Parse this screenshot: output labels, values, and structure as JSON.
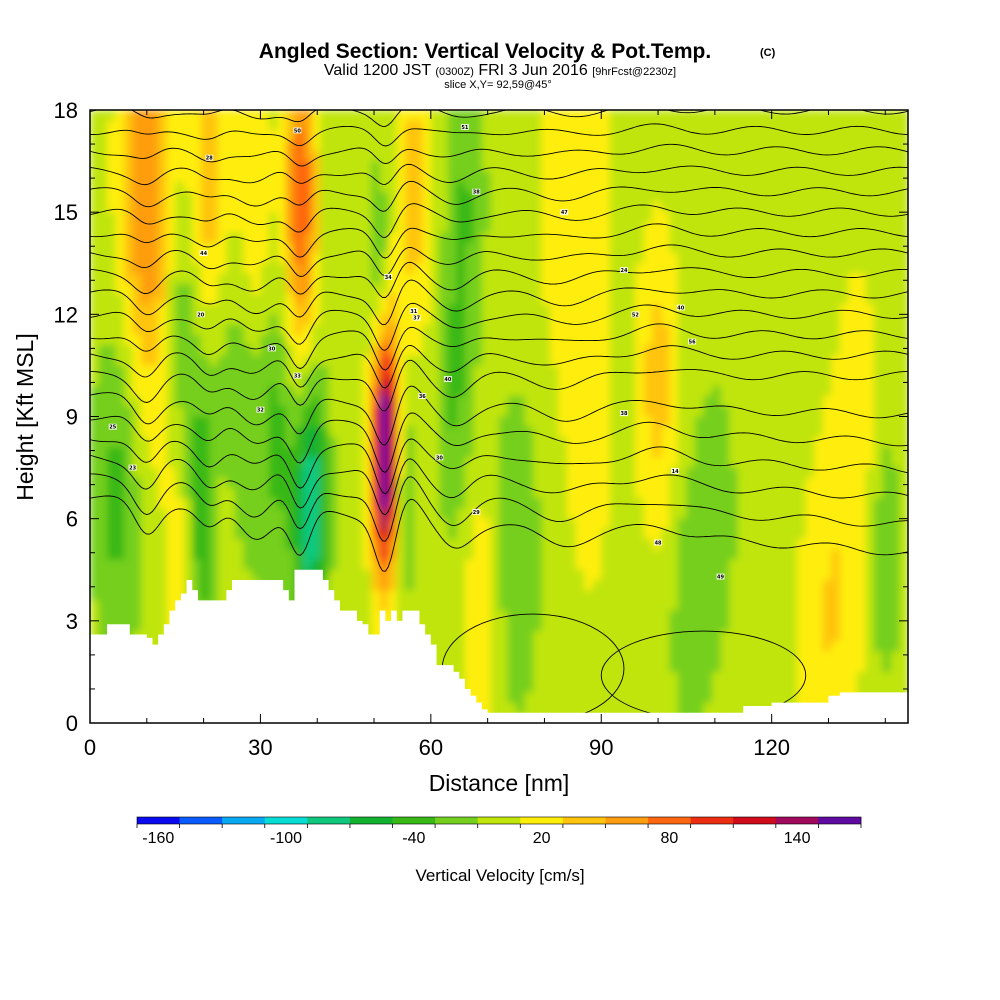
{
  "chart_data": {
    "type": "heatmap",
    "title": "Angled Section: Vertical Velocity & Pot.Temp.",
    "title_suffix": "(C)",
    "subtitle_parts": [
      "Valid 1200 JST ",
      "(0300Z)",
      " FRI 3 Jun 2016 ",
      "[9hrFcst@2230z]"
    ],
    "slice_label": "slice X,Y= 92,59@45°",
    "xlabel": "Distance [nm]",
    "ylabel": "Height [Kft MSL]",
    "xlim": [
      0,
      144
    ],
    "ylim": [
      0,
      18
    ],
    "x_ticks": [
      0,
      30,
      60,
      90,
      120
    ],
    "y_ticks": [
      0,
      3,
      6,
      9,
      12,
      15,
      18
    ],
    "colorbar": {
      "label": "Vertical Velocity [cm/s]",
      "tick_labels": [
        -160,
        -100,
        -40,
        20,
        80,
        140
      ],
      "levels": [
        -160,
        -140,
        -120,
        -100,
        -80,
        -60,
        -40,
        -20,
        0,
        20,
        40,
        60,
        80,
        100,
        120,
        140,
        160
      ],
      "colors": [
        "#0a0aee",
        "#0a5bff",
        "#08aaf2",
        "#08ddd5",
        "#0fc87e",
        "#13b331",
        "#38b816",
        "#74cf1e",
        "#bfe50a",
        "#ffee0a",
        "#ffc40e",
        "#ff9d11",
        "#ff6611",
        "#ee2e12",
        "#d10a1c",
        "#a10a5c",
        "#5f0aa0"
      ]
    },
    "background_velocity_cm_s": 10,
    "velocity_features": [
      {
        "x": 10,
        "y": 16.5,
        "w": 10,
        "value": 50
      },
      {
        "x": 10,
        "y": 12.5,
        "w": 12,
        "value": 30
      },
      {
        "x": 21,
        "y": 16.0,
        "w": 8,
        "value": 45
      },
      {
        "x": 37,
        "y": 16.0,
        "w": 6,
        "value": 80
      },
      {
        "x": 37,
        "y": 11.5,
        "w": 7,
        "value": 45
      },
      {
        "x": 29,
        "y": 14.0,
        "w": 8,
        "value": 40
      },
      {
        "x": 16,
        "y": 12.0,
        "w": 7,
        "value": -30
      },
      {
        "x": 27,
        "y": 10.5,
        "w": 10,
        "value": -30
      },
      {
        "x": 34,
        "y": 9.0,
        "w": 10,
        "value": -40
      },
      {
        "x": 39,
        "y": 6.5,
        "w": 6,
        "value": -90
      },
      {
        "x": 5,
        "y": 7.0,
        "w": 10,
        "value": -40
      },
      {
        "x": 20,
        "y": 6.0,
        "w": 8,
        "value": -50
      },
      {
        "x": 16,
        "y": 5.0,
        "w": 6,
        "value": 30
      },
      {
        "x": 23,
        "y": 5.0,
        "w": 5,
        "value": 30
      },
      {
        "x": 52,
        "y": 7.5,
        "w": 5,
        "value": 150
      },
      {
        "x": 52,
        "y": 9.5,
        "w": 6,
        "value": 60
      },
      {
        "x": 55,
        "y": 7.0,
        "w": 5,
        "value": -40
      },
      {
        "x": 51,
        "y": 13.0,
        "w": 5,
        "value": -40
      },
      {
        "x": 57,
        "y": 15.5,
        "w": 8,
        "value": 40
      },
      {
        "x": 66,
        "y": 15.5,
        "w": 8,
        "value": -30
      },
      {
        "x": 64,
        "y": 9.5,
        "w": 7,
        "value": -30
      },
      {
        "x": 75,
        "y": 5.0,
        "w": 10,
        "value": -25
      },
      {
        "x": 69,
        "y": 3.0,
        "w": 7,
        "value": 30
      },
      {
        "x": 85,
        "y": 16.0,
        "w": 14,
        "value": 25
      },
      {
        "x": 100,
        "y": 10.0,
        "w": 8,
        "value": 40
      },
      {
        "x": 110,
        "y": 6.0,
        "w": 12,
        "value": -15
      },
      {
        "x": 105,
        "y": 3.0,
        "w": 8,
        "value": -15
      },
      {
        "x": 125,
        "y": 14.0,
        "w": 14,
        "value": -10
      },
      {
        "x": 135,
        "y": 9.0,
        "w": 10,
        "value": 20
      },
      {
        "x": 140,
        "y": 5.0,
        "w": 6,
        "value": -30
      },
      {
        "x": 130,
        "y": 3.0,
        "w": 12,
        "value": 30
      },
      {
        "x": 88,
        "y": 7.5,
        "w": 10,
        "value": 15
      }
    ],
    "terrain_kft": {
      "x": [
        0,
        3,
        5,
        7,
        9,
        10,
        11,
        12,
        13,
        14,
        15,
        16,
        17,
        18,
        19,
        20,
        23,
        24,
        25,
        26,
        33,
        34,
        35,
        36,
        40,
        41,
        42,
        43,
        44,
        45,
        47,
        48,
        49,
        50,
        51,
        52,
        53,
        54,
        55,
        57,
        58,
        59,
        60,
        61,
        62,
        63,
        64,
        65,
        66,
        67,
        68,
        69,
        70,
        72,
        100,
        114,
        115,
        118,
        120,
        125,
        130,
        132,
        138,
        144
      ],
      "y": [
        2.6,
        2.9,
        2.9,
        2.6,
        2.6,
        2.5,
        2.3,
        2.6,
        2.9,
        3.3,
        3.6,
        3.8,
        4.2,
        3.9,
        3.6,
        3.6,
        3.6,
        3.9,
        4.2,
        4.2,
        4.2,
        3.9,
        3.6,
        4.5,
        4.5,
        4.2,
        3.9,
        3.6,
        3.3,
        3.3,
        3.0,
        2.9,
        2.6,
        2.6,
        3.3,
        3.0,
        3.3,
        3.0,
        3.3,
        3.3,
        2.9,
        2.6,
        2.3,
        1.7,
        1.7,
        1.7,
        1.5,
        1.3,
        1.0,
        0.8,
        0.6,
        0.4,
        0.3,
        0.3,
        0.3,
        0.3,
        0.5,
        0.5,
        0.6,
        0.6,
        0.8,
        0.9,
        0.9,
        1.3
      ]
    },
    "isentropes": {
      "count": 24,
      "base_kft": 6.6,
      "spacing_kft": 0.6,
      "label_points": [
        {
          "x": 4,
          "y": 8.7,
          "text": "25"
        },
        {
          "x": 7.5,
          "y": 7.5,
          "text": "23"
        },
        {
          "x": 21,
          "y": 16.6,
          "text": "28"
        },
        {
          "x": 20,
          "y": 13.8,
          "text": "44"
        },
        {
          "x": 19.5,
          "y": 12.0,
          "text": "20"
        },
        {
          "x": 32,
          "y": 11.0,
          "text": "30"
        },
        {
          "x": 30,
          "y": 9.2,
          "text": "32"
        },
        {
          "x": 36.5,
          "y": 10.2,
          "text": "33"
        },
        {
          "x": 36.5,
          "y": 17.4,
          "text": "50"
        },
        {
          "x": 52.5,
          "y": 13.1,
          "text": "34"
        },
        {
          "x": 57,
          "y": 12.1,
          "text": "31"
        },
        {
          "x": 57.5,
          "y": 11.9,
          "text": "37"
        },
        {
          "x": 58.5,
          "y": 9.6,
          "text": "36"
        },
        {
          "x": 63,
          "y": 10.1,
          "text": "40"
        },
        {
          "x": 61.5,
          "y": 7.8,
          "text": "30"
        },
        {
          "x": 68,
          "y": 6.2,
          "text": "29"
        },
        {
          "x": 66,
          "y": 17.5,
          "text": "51"
        },
        {
          "x": 68,
          "y": 15.6,
          "text": "38"
        },
        {
          "x": 83.5,
          "y": 15.0,
          "text": "47"
        },
        {
          "x": 94,
          "y": 13.3,
          "text": "24"
        },
        {
          "x": 96,
          "y": 12.0,
          "text": "52"
        },
        {
          "x": 104,
          "y": 12.2,
          "text": "40"
        },
        {
          "x": 106,
          "y": 11.2,
          "text": "56"
        },
        {
          "x": 94,
          "y": 9.1,
          "text": "38"
        },
        {
          "x": 100,
          "y": 5.3,
          "text": "48"
        },
        {
          "x": 111,
          "y": 4.3,
          "text": "49"
        },
        {
          "x": 103,
          "y": 7.4,
          "text": "14"
        }
      ]
    }
  }
}
